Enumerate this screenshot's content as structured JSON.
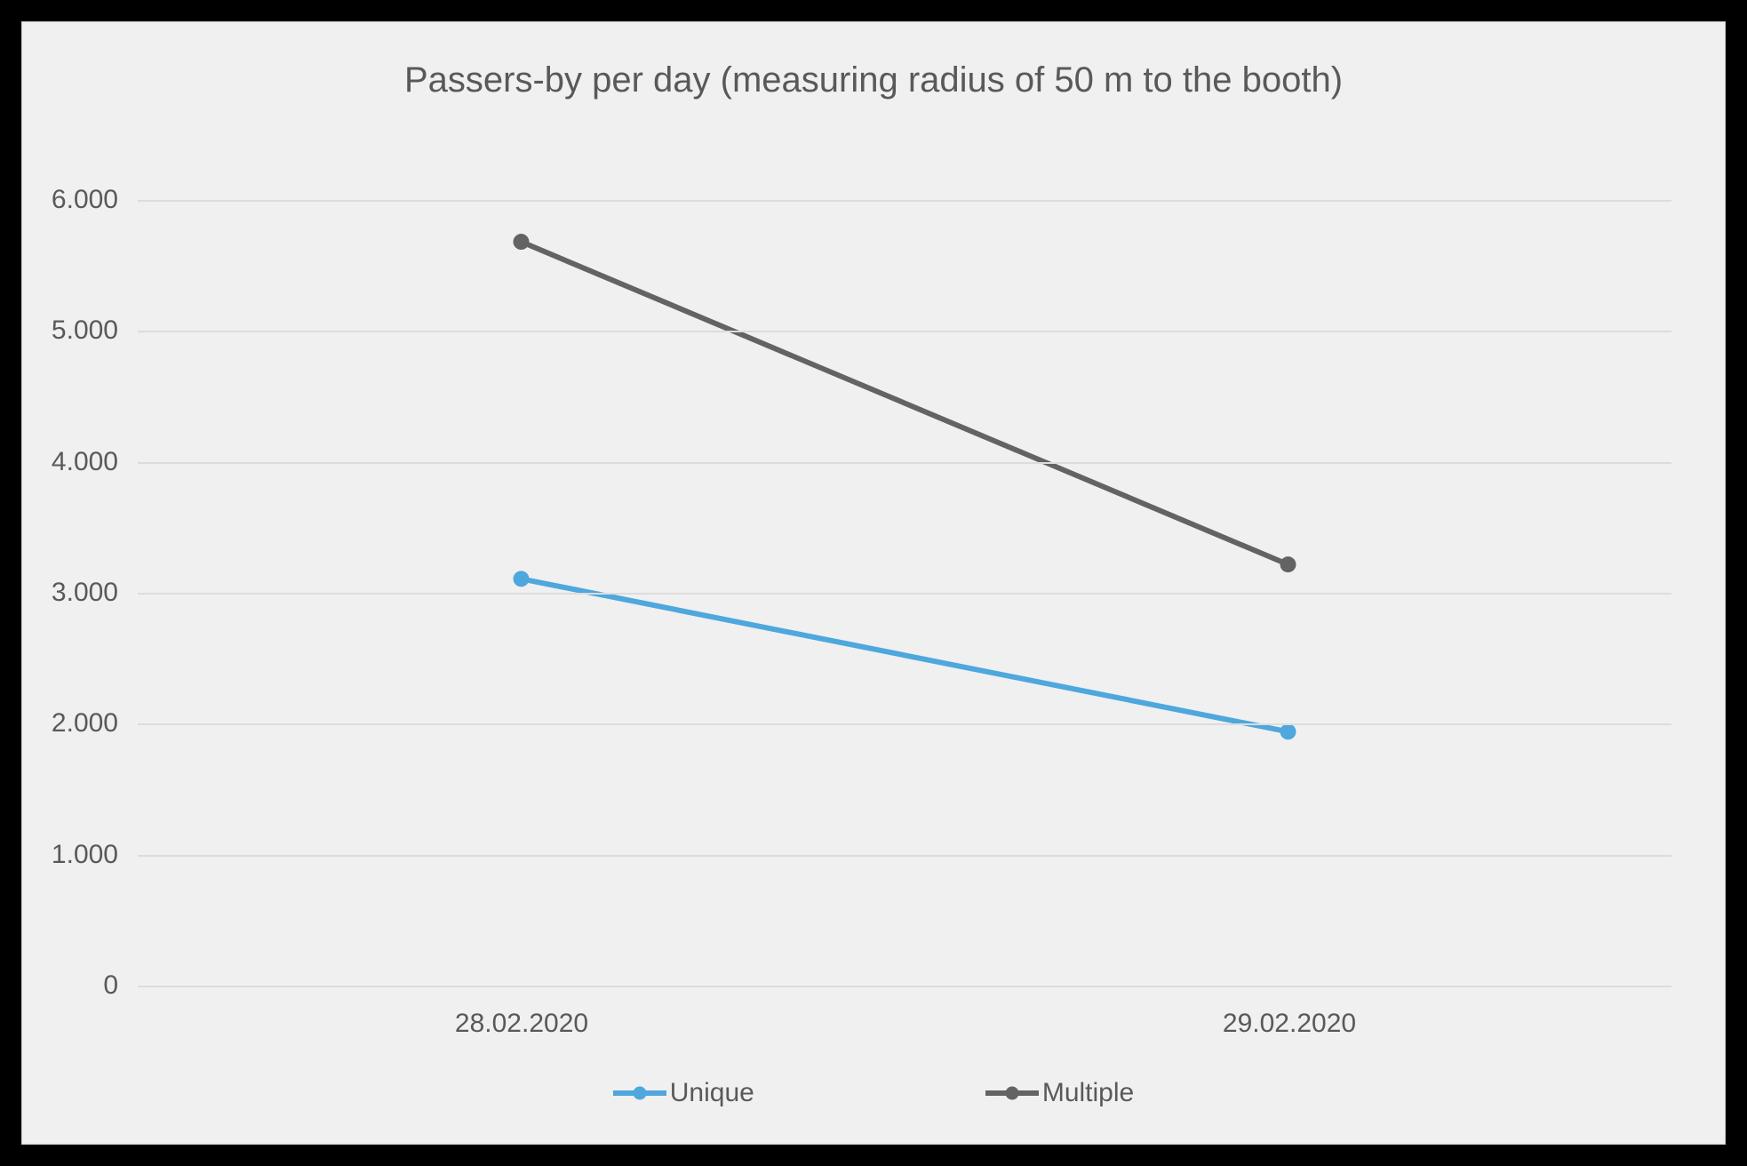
{
  "chart": {
    "type": "line",
    "title": "Passers-by per day (measuring radius of 50 m to the booth)",
    "title_fontsize": 40,
    "title_color": "#595959",
    "background_color": "#f0f0f0",
    "outer_border_color": "#000000",
    "card_border_color": "#c8c8c8",
    "grid_color": "#dcdcdc",
    "tick_color": "#595959",
    "tick_fontsize": 30,
    "legend_fontsize": 30,
    "y": {
      "min": 0,
      "max": 6000,
      "step": 1000,
      "ticks": [
        "0",
        "1.000",
        "2.000",
        "3.000",
        "4.000",
        "5.000",
        "6.000"
      ]
    },
    "x": {
      "categories": [
        "28.02.2020",
        "29.02.2020"
      ],
      "positions_pct": [
        25,
        75
      ]
    },
    "series": [
      {
        "name": "Unique",
        "color": "#4ea7dd",
        "line_width": 6,
        "marker_radius": 9,
        "values": [
          3100,
          1930
        ]
      },
      {
        "name": "Multiple",
        "color": "#636363",
        "line_width": 6,
        "marker_radius": 9,
        "values": [
          5680,
          3210
        ]
      }
    ]
  }
}
